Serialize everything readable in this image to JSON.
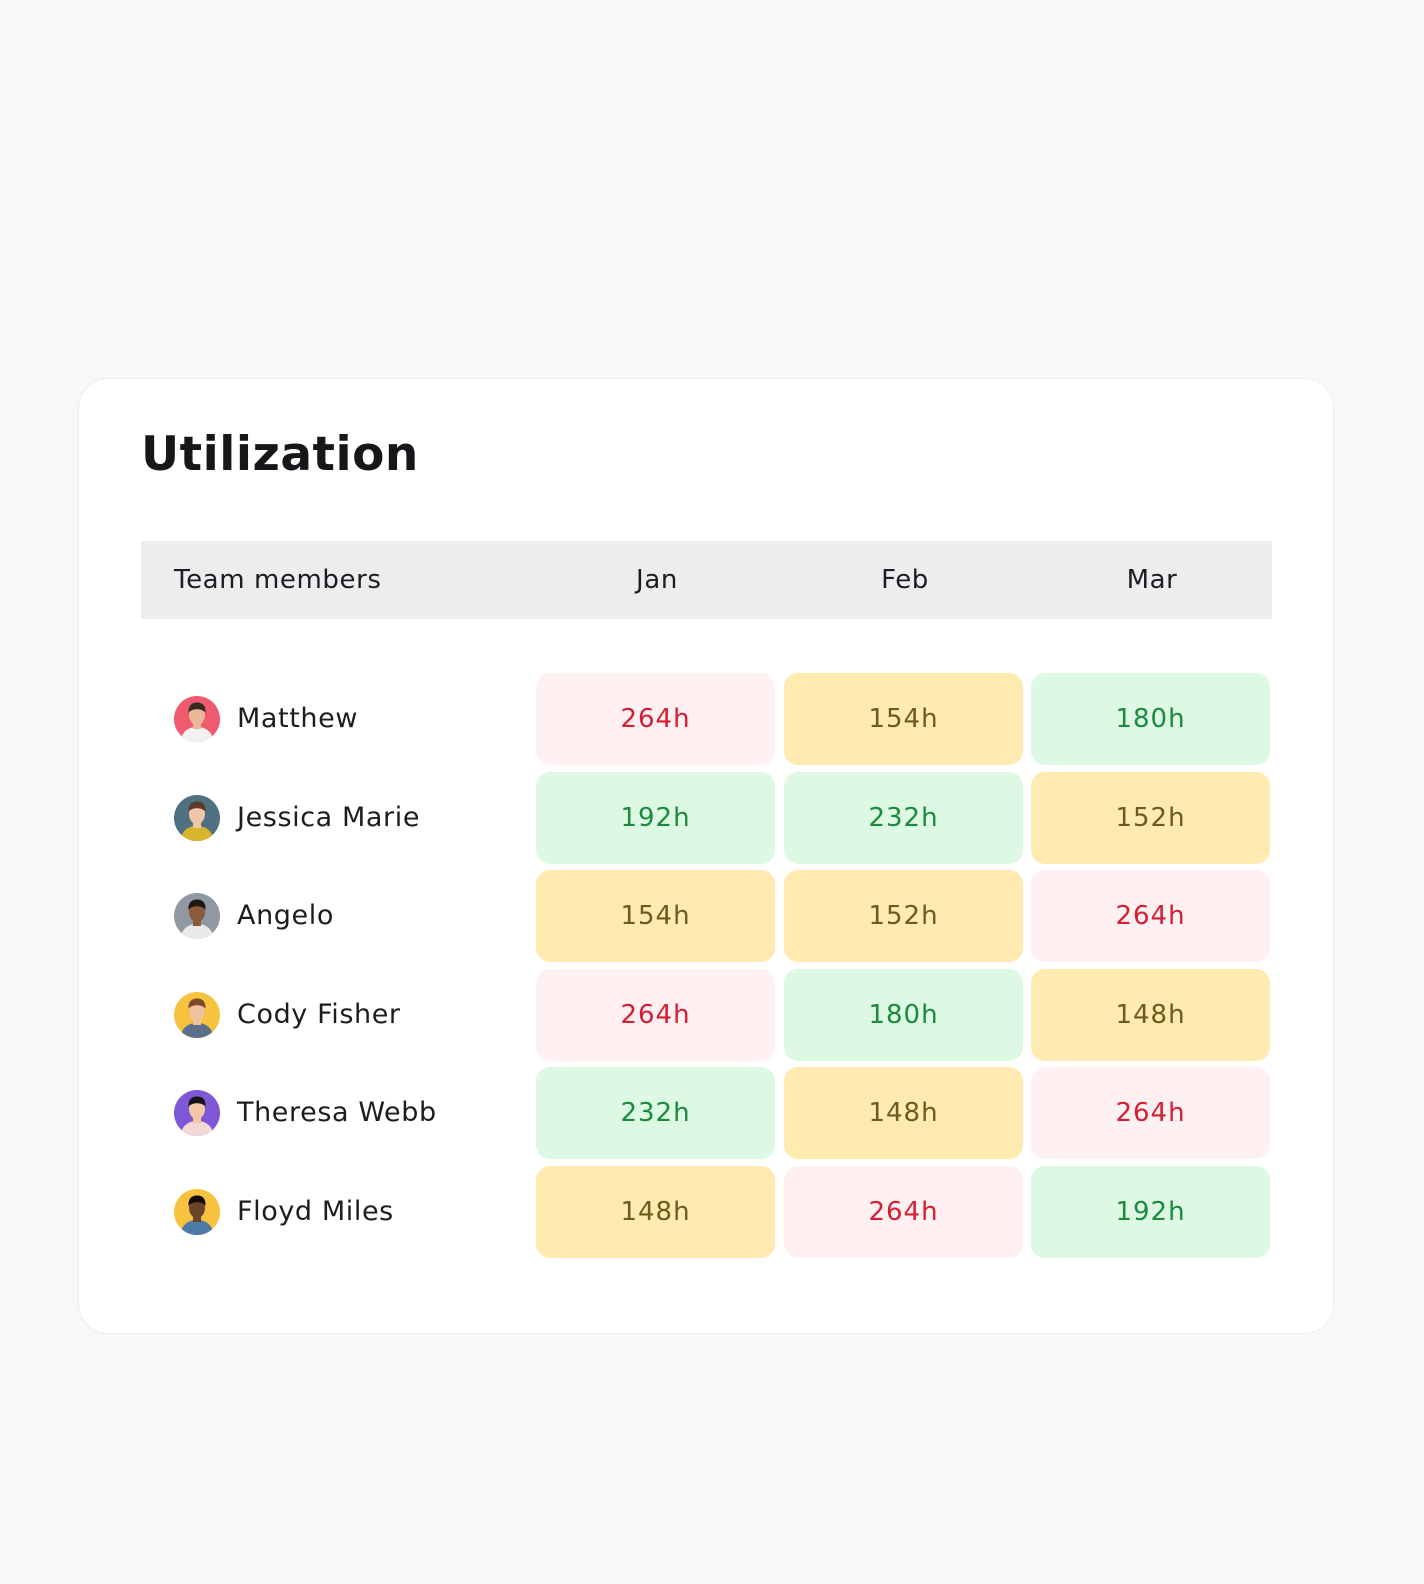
{
  "title": "Utilization",
  "table": {
    "columns": [
      "Team members",
      "Jan",
      "Feb",
      "Mar"
    ],
    "rows": [
      {
        "name": "Matthew",
        "avatar": "avatar-matthew",
        "avatar_bg": "#ef5a6f",
        "cells": [
          {
            "value": "264h",
            "status": "over"
          },
          {
            "value": "154h",
            "status": "under"
          },
          {
            "value": "180h",
            "status": "optimal"
          }
        ]
      },
      {
        "name": "Jessica Marie",
        "avatar": "avatar-jessica",
        "avatar_bg": "#4f7182",
        "cells": [
          {
            "value": "192h",
            "status": "optimal"
          },
          {
            "value": "232h",
            "status": "optimal"
          },
          {
            "value": "152h",
            "status": "under"
          }
        ]
      },
      {
        "name": "Angelo",
        "avatar": "avatar-angelo",
        "avatar_bg": "#8f98a3",
        "cells": [
          {
            "value": "154h",
            "status": "under"
          },
          {
            "value": "152h",
            "status": "under"
          },
          {
            "value": "264h",
            "status": "over"
          }
        ]
      },
      {
        "name": "Cody Fisher",
        "avatar": "avatar-cody",
        "avatar_bg": "#f7c23e",
        "cells": [
          {
            "value": "264h",
            "status": "over"
          },
          {
            "value": "180h",
            "status": "optimal"
          },
          {
            "value": "148h",
            "status": "under"
          }
        ]
      },
      {
        "name": "Theresa Webb",
        "avatar": "avatar-theresa",
        "avatar_bg": "#7e57d6",
        "cells": [
          {
            "value": "232h",
            "status": "optimal"
          },
          {
            "value": "148h",
            "status": "under"
          },
          {
            "value": "264h",
            "status": "over"
          }
        ]
      },
      {
        "name": "Floyd Miles",
        "avatar": "avatar-floyd",
        "avatar_bg": "#f7c23e",
        "cells": [
          {
            "value": "148h",
            "status": "under"
          },
          {
            "value": "264h",
            "status": "over"
          },
          {
            "value": "192h",
            "status": "optimal"
          }
        ]
      }
    ]
  },
  "colors": {
    "over_bg": "#fff0f1",
    "over_text": "#d41e34",
    "under_bg": "#ffebb0",
    "under_text": "#6e5a1a",
    "optimal_bg": "#ddf9e4",
    "optimal_text": "#1c8a3c",
    "header_bg": "#ecedef",
    "page_bg": "#f8f8fa"
  }
}
